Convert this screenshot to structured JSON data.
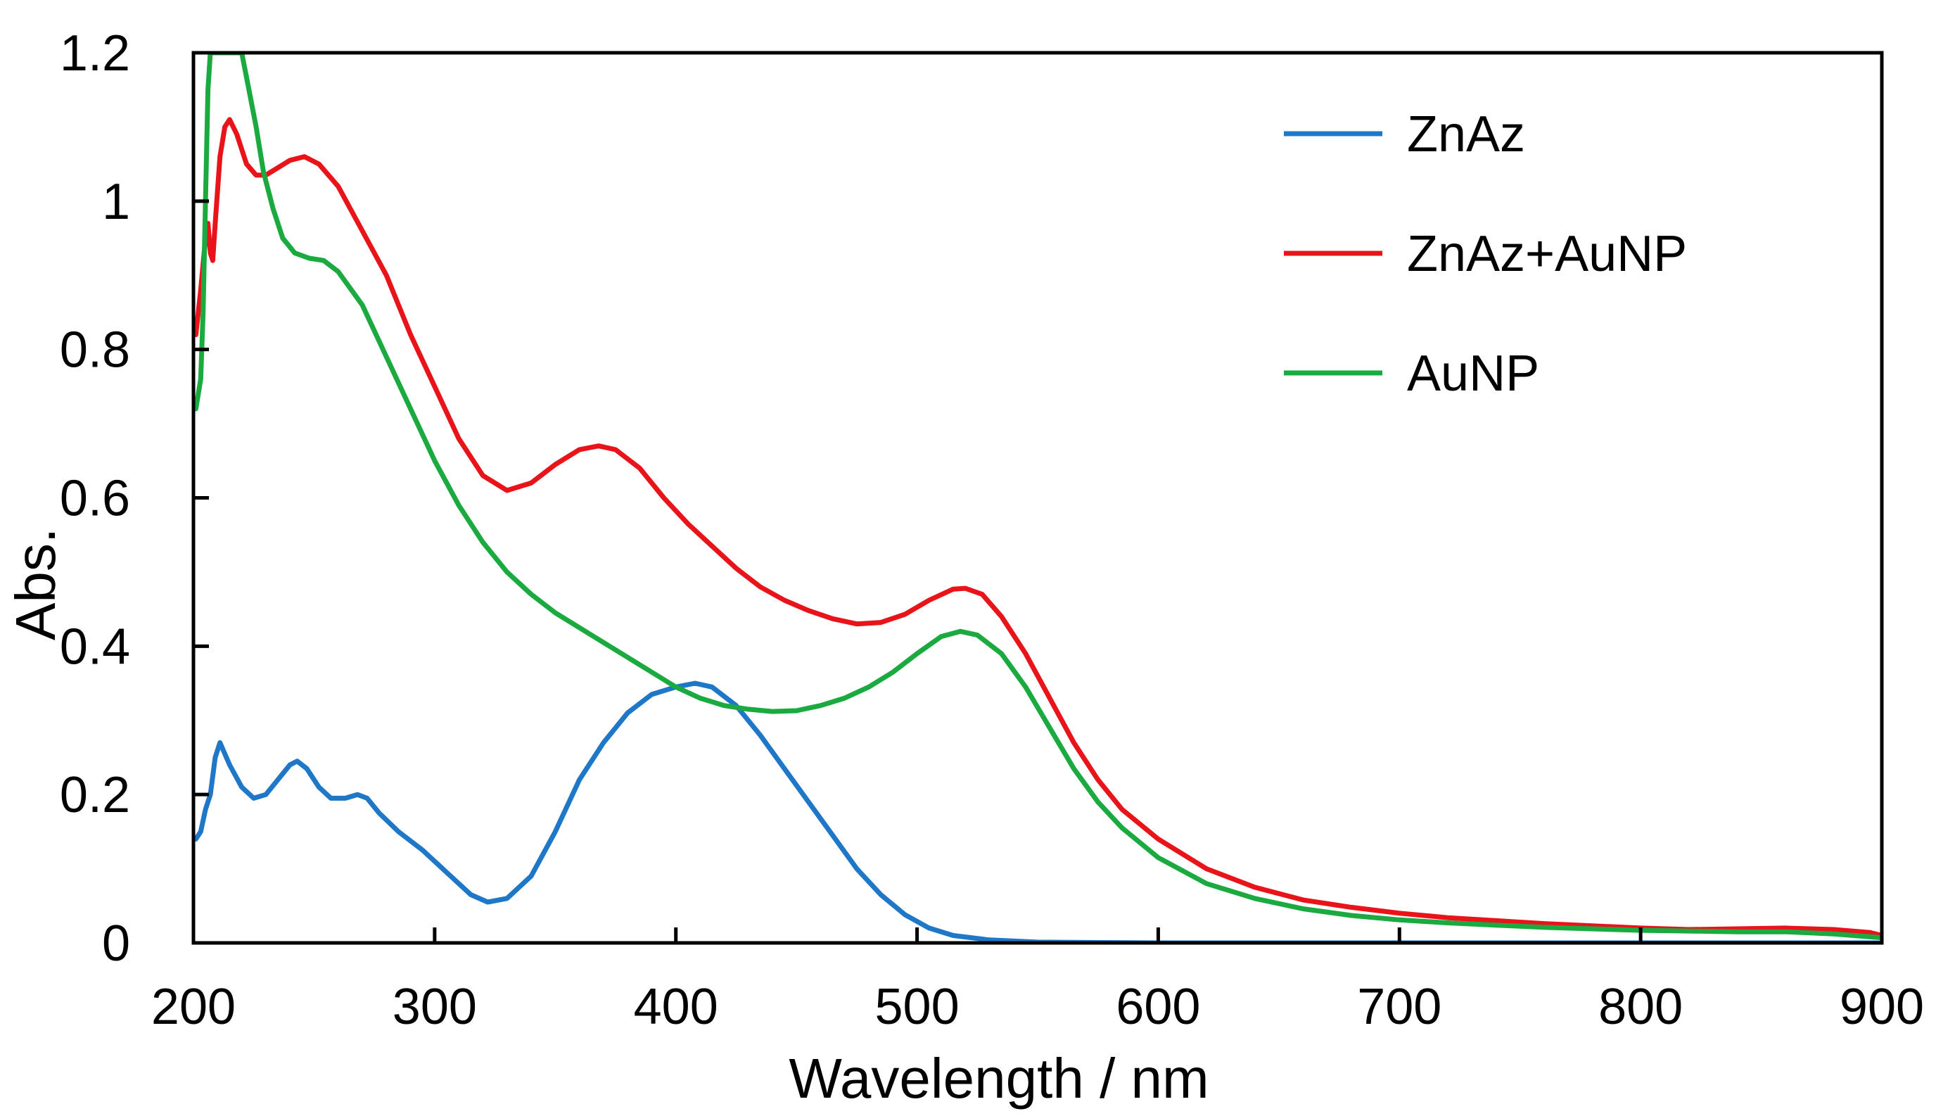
{
  "chart_data": {
    "type": "line",
    "xlabel": "Wavelength / nm",
    "ylabel": "Abs.",
    "xlim": [
      200,
      900
    ],
    "ylim": [
      0,
      1.2
    ],
    "x_ticks": [
      "200",
      "300",
      "400",
      "500",
      "600",
      "700",
      "800",
      "900"
    ],
    "y_ticks": [
      "0",
      "0.2",
      "0.4",
      "0.6",
      "0.8",
      "1",
      "1.2"
    ],
    "legend_position": "top-right",
    "grid": false,
    "series": [
      {
        "name": "ZnAz",
        "color": "#1f77c8",
        "points": [
          [
            201,
            0.14
          ],
          [
            203,
            0.15
          ],
          [
            205,
            0.18
          ],
          [
            207,
            0.2
          ],
          [
            209,
            0.25
          ],
          [
            211,
            0.27
          ],
          [
            215,
            0.24
          ],
          [
            220,
            0.21
          ],
          [
            225,
            0.195
          ],
          [
            230,
            0.2
          ],
          [
            235,
            0.22
          ],
          [
            240,
            0.24
          ],
          [
            243,
            0.245
          ],
          [
            247,
            0.235
          ],
          [
            252,
            0.21
          ],
          [
            257,
            0.195
          ],
          [
            263,
            0.195
          ],
          [
            268,
            0.2
          ],
          [
            272,
            0.195
          ],
          [
            277,
            0.175
          ],
          [
            285,
            0.15
          ],
          [
            295,
            0.125
          ],
          [
            305,
            0.095
          ],
          [
            315,
            0.065
          ],
          [
            322,
            0.055
          ],
          [
            330,
            0.06
          ],
          [
            340,
            0.09
          ],
          [
            350,
            0.15
          ],
          [
            360,
            0.22
          ],
          [
            370,
            0.27
          ],
          [
            380,
            0.31
          ],
          [
            390,
            0.335
          ],
          [
            400,
            0.345
          ],
          [
            408,
            0.35
          ],
          [
            415,
            0.345
          ],
          [
            425,
            0.32
          ],
          [
            435,
            0.28
          ],
          [
            445,
            0.235
          ],
          [
            455,
            0.19
          ],
          [
            465,
            0.145
          ],
          [
            475,
            0.1
          ],
          [
            485,
            0.065
          ],
          [
            495,
            0.038
          ],
          [
            505,
            0.02
          ],
          [
            515,
            0.01
          ],
          [
            530,
            0.004
          ],
          [
            550,
            0.001
          ],
          [
            600,
            0.0
          ],
          [
            700,
            0.0
          ],
          [
            800,
            0.0
          ],
          [
            900,
            0.0
          ]
        ]
      },
      {
        "name": "ZnAz+AuNP",
        "color": "#e8141a",
        "points": [
          [
            201,
            0.82
          ],
          [
            203,
            0.88
          ],
          [
            205,
            0.95
          ],
          [
            206,
            0.97
          ],
          [
            207,
            0.93
          ],
          [
            208,
            0.92
          ],
          [
            209,
            0.97
          ],
          [
            211,
            1.06
          ],
          [
            213,
            1.1
          ],
          [
            215,
            1.11
          ],
          [
            218,
            1.09
          ],
          [
            222,
            1.05
          ],
          [
            226,
            1.035
          ],
          [
            230,
            1.035
          ],
          [
            235,
            1.045
          ],
          [
            240,
            1.055
          ],
          [
            246,
            1.06
          ],
          [
            252,
            1.05
          ],
          [
            260,
            1.02
          ],
          [
            270,
            0.96
          ],
          [
            280,
            0.9
          ],
          [
            290,
            0.82
          ],
          [
            300,
            0.75
          ],
          [
            310,
            0.68
          ],
          [
            320,
            0.63
          ],
          [
            330,
            0.61
          ],
          [
            340,
            0.62
          ],
          [
            350,
            0.645
          ],
          [
            360,
            0.665
          ],
          [
            368,
            0.67
          ],
          [
            375,
            0.665
          ],
          [
            385,
            0.64
          ],
          [
            395,
            0.6
          ],
          [
            405,
            0.565
          ],
          [
            415,
            0.535
          ],
          [
            425,
            0.505
          ],
          [
            435,
            0.48
          ],
          [
            445,
            0.462
          ],
          [
            455,
            0.448
          ],
          [
            465,
            0.437
          ],
          [
            475,
            0.43
          ],
          [
            485,
            0.432
          ],
          [
            495,
            0.443
          ],
          [
            505,
            0.462
          ],
          [
            515,
            0.477
          ],
          [
            520,
            0.478
          ],
          [
            527,
            0.47
          ],
          [
            535,
            0.44
          ],
          [
            545,
            0.39
          ],
          [
            555,
            0.33
          ],
          [
            565,
            0.27
          ],
          [
            575,
            0.22
          ],
          [
            585,
            0.18
          ],
          [
            600,
            0.14
          ],
          [
            620,
            0.1
          ],
          [
            640,
            0.075
          ],
          [
            660,
            0.058
          ],
          [
            680,
            0.048
          ],
          [
            700,
            0.04
          ],
          [
            720,
            0.034
          ],
          [
            740,
            0.03
          ],
          [
            760,
            0.026
          ],
          [
            780,
            0.023
          ],
          [
            800,
            0.02
          ],
          [
            820,
            0.018
          ],
          [
            840,
            0.019
          ],
          [
            860,
            0.02
          ],
          [
            880,
            0.018
          ],
          [
            895,
            0.014
          ],
          [
            900,
            0.01
          ]
        ]
      },
      {
        "name": "AuNP",
        "color": "#1aaa40",
        "points": [
          [
            201,
            0.72
          ],
          [
            203,
            0.76
          ],
          [
            204,
            0.85
          ],
          [
            205,
            1.0
          ],
          [
            206,
            1.15
          ],
          [
            207,
            1.2
          ],
          [
            220,
            1.2
          ],
          [
            223,
            1.15
          ],
          [
            226,
            1.1
          ],
          [
            229,
            1.04
          ],
          [
            233,
            0.99
          ],
          [
            237,
            0.95
          ],
          [
            242,
            0.93
          ],
          [
            248,
            0.923
          ],
          [
            254,
            0.92
          ],
          [
            260,
            0.905
          ],
          [
            270,
            0.86
          ],
          [
            280,
            0.79
          ],
          [
            290,
            0.72
          ],
          [
            300,
            0.65
          ],
          [
            310,
            0.59
          ],
          [
            320,
            0.54
          ],
          [
            330,
            0.5
          ],
          [
            340,
            0.47
          ],
          [
            350,
            0.445
          ],
          [
            360,
            0.425
          ],
          [
            370,
            0.405
          ],
          [
            380,
            0.385
          ],
          [
            390,
            0.365
          ],
          [
            400,
            0.345
          ],
          [
            410,
            0.33
          ],
          [
            420,
            0.32
          ],
          [
            430,
            0.315
          ],
          [
            440,
            0.312
          ],
          [
            450,
            0.313
          ],
          [
            460,
            0.32
          ],
          [
            470,
            0.33
          ],
          [
            480,
            0.345
          ],
          [
            490,
            0.365
          ],
          [
            500,
            0.39
          ],
          [
            510,
            0.413
          ],
          [
            518,
            0.42
          ],
          [
            525,
            0.415
          ],
          [
            535,
            0.39
          ],
          [
            545,
            0.345
          ],
          [
            555,
            0.29
          ],
          [
            565,
            0.235
          ],
          [
            575,
            0.19
          ],
          [
            585,
            0.155
          ],
          [
            600,
            0.115
          ],
          [
            620,
            0.08
          ],
          [
            640,
            0.06
          ],
          [
            660,
            0.046
          ],
          [
            680,
            0.037
          ],
          [
            700,
            0.031
          ],
          [
            720,
            0.027
          ],
          [
            740,
            0.024
          ],
          [
            760,
            0.021
          ],
          [
            780,
            0.019
          ],
          [
            800,
            0.017
          ],
          [
            820,
            0.016
          ],
          [
            840,
            0.015
          ],
          [
            860,
            0.015
          ],
          [
            880,
            0.012
          ],
          [
            900,
            0.007
          ]
        ]
      }
    ]
  }
}
